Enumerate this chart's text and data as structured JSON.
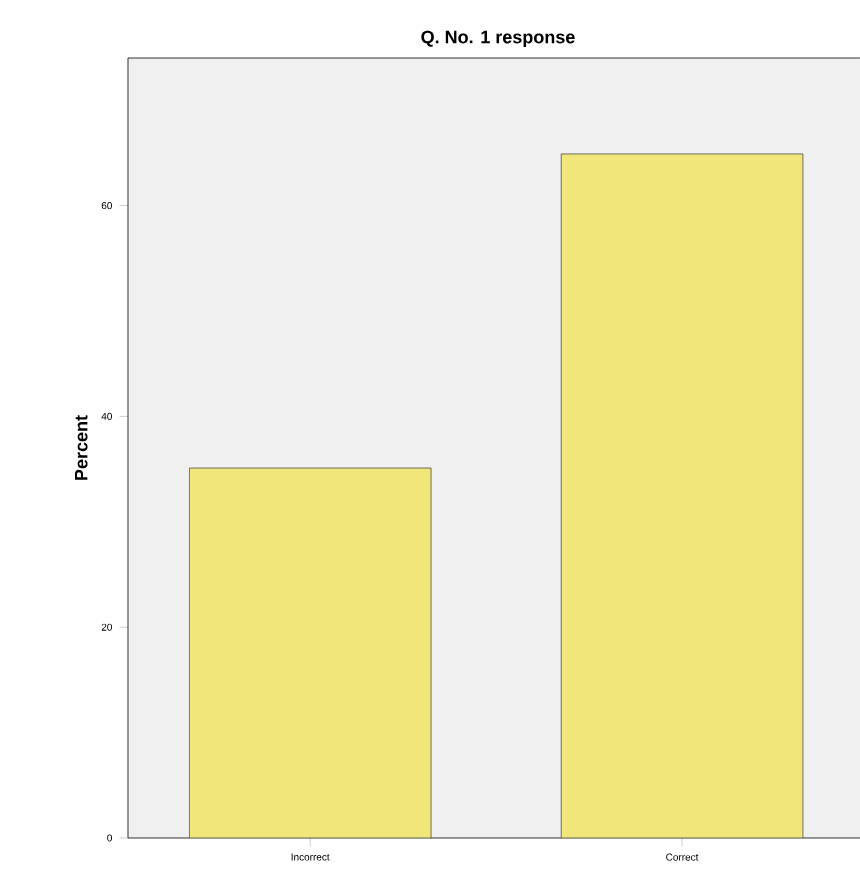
{
  "chart_data": {
    "type": "bar",
    "title": "Q. No. 1 response",
    "ylabel": "Percent",
    "categories": [
      "Incorrect",
      "Correct"
    ],
    "values": [
      35.1,
      64.9
    ],
    "color": "#f0e67a",
    "ylim": [
      0,
      74
    ],
    "yticks": [
      0,
      20,
      40,
      60
    ]
  }
}
